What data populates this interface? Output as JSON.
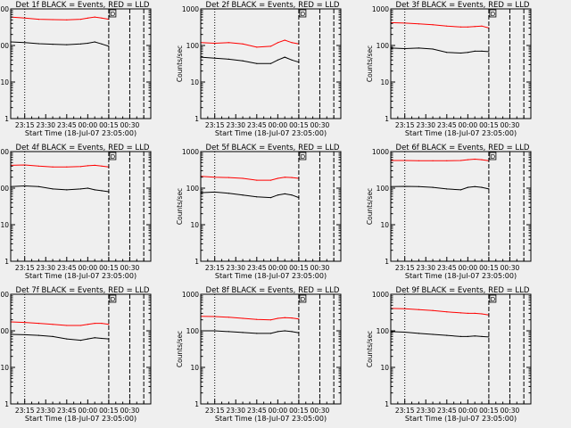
{
  "figure": {
    "background": "#efefef",
    "x_axis_label": "Start Time (18-Jul-07 23:05:00)",
    "y_axis_label": "Counts/sec",
    "y_scale": "log",
    "ylim": [
      1,
      1000
    ],
    "y_tick_labels": [
      "1",
      "10",
      "100",
      "1000"
    ],
    "x_tick_labels": [
      "23:15",
      "23:30",
      "23:45",
      "00:00",
      "00:15",
      "00:30"
    ],
    "x_tick_values_min": [
      10,
      25,
      40,
      55,
      70,
      85
    ],
    "xlim_min": [
      0,
      100
    ],
    "marker_label": "D",
    "reference_lines_min": [
      10,
      70,
      85,
      95
    ],
    "colors": {
      "events": "#000000",
      "lld": "#ff0000",
      "axes": "#000000"
    }
  },
  "chart_data": [
    {
      "type": "line",
      "title": "Det 1f BLACK = Events, RED = LLD",
      "x_min": [
        0,
        10,
        20,
        30,
        40,
        50,
        55,
        60,
        65,
        70
      ],
      "series": [
        {
          "name": "BLACK = Events",
          "values": [
            125,
            120,
            112,
            108,
            105,
            110,
            115,
            125,
            110,
            95
          ]
        },
        {
          "name": "RED = LLD",
          "values": [
            600,
            560,
            520,
            510,
            500,
            520,
            560,
            600,
            560,
            520
          ]
        }
      ]
    },
    {
      "type": "line",
      "title": "Det 2f BLACK = Events, RED = LLD",
      "x_min": [
        0,
        10,
        20,
        30,
        40,
        50,
        55,
        60,
        65,
        70
      ],
      "series": [
        {
          "name": "BLACK = Events",
          "values": [
            48,
            45,
            42,
            38,
            32,
            32,
            40,
            48,
            40,
            35
          ]
        },
        {
          "name": "RED = LLD",
          "values": [
            120,
            115,
            120,
            110,
            90,
            95,
            120,
            140,
            120,
            110
          ]
        }
      ]
    },
    {
      "type": "line",
      "title": "Det 3f BLACK = Events, RED = LLD",
      "x_min": [
        0,
        10,
        20,
        30,
        40,
        50,
        55,
        60,
        65,
        70
      ],
      "series": [
        {
          "name": "BLACK = Events",
          "values": [
            85,
            82,
            85,
            80,
            65,
            62,
            65,
            70,
            70,
            68
          ]
        },
        {
          "name": "RED = LLD",
          "values": [
            420,
            410,
            390,
            370,
            340,
            320,
            320,
            330,
            340,
            300
          ]
        }
      ]
    },
    {
      "type": "line",
      "title": "Det 4f BLACK = Events, RED = LLD",
      "x_min": [
        0,
        10,
        20,
        30,
        40,
        50,
        55,
        60,
        65,
        70
      ],
      "series": [
        {
          "name": "BLACK = Events",
          "values": [
            110,
            115,
            110,
            95,
            90,
            95,
            100,
            90,
            85,
            80
          ]
        },
        {
          "name": "RED = LLD",
          "values": [
            420,
            430,
            400,
            380,
            380,
            390,
            410,
            420,
            400,
            380
          ]
        }
      ]
    },
    {
      "type": "line",
      "title": "Det 5f BLACK = Events, RED = LLD",
      "x_min": [
        0,
        10,
        20,
        30,
        40,
        50,
        55,
        60,
        65,
        70
      ],
      "series": [
        {
          "name": "BLACK = Events",
          "values": [
            75,
            78,
            72,
            65,
            58,
            55,
            65,
            70,
            65,
            55
          ]
        },
        {
          "name": "RED = LLD",
          "values": [
            210,
            200,
            195,
            185,
            165,
            165,
            185,
            200,
            195,
            185
          ]
        }
      ]
    },
    {
      "type": "line",
      "title": "Det 6f BLACK = Events, RED = LLD",
      "x_min": [
        0,
        10,
        20,
        30,
        40,
        50,
        55,
        60,
        65,
        70
      ],
      "series": [
        {
          "name": "BLACK = Events",
          "values": [
            110,
            112,
            110,
            105,
            95,
            90,
            105,
            110,
            105,
            95
          ]
        },
        {
          "name": "RED = LLD",
          "values": [
            570,
            570,
            560,
            560,
            560,
            570,
            600,
            620,
            600,
            560
          ]
        }
      ]
    },
    {
      "type": "line",
      "title": "Det 7f BLACK = Events, RED = LLD",
      "x_min": [
        0,
        10,
        20,
        30,
        40,
        50,
        55,
        60,
        65,
        70
      ],
      "series": [
        {
          "name": "BLACK = Events",
          "values": [
            80,
            78,
            75,
            70,
            60,
            55,
            60,
            65,
            62,
            60
          ]
        },
        {
          "name": "RED = LLD",
          "values": [
            175,
            170,
            160,
            150,
            140,
            140,
            150,
            160,
            160,
            150
          ]
        }
      ]
    },
    {
      "type": "line",
      "title": "Det 8f BLACK = Events, RED = LLD",
      "x_min": [
        0,
        10,
        20,
        30,
        40,
        50,
        55,
        60,
        65,
        70
      ],
      "series": [
        {
          "name": "BLACK = Events",
          "values": [
            100,
            100,
            95,
            90,
            85,
            85,
            95,
            100,
            95,
            88
          ]
        },
        {
          "name": "RED = LLD",
          "values": [
            250,
            245,
            235,
            220,
            205,
            200,
            220,
            230,
            225,
            210
          ]
        }
      ]
    },
    {
      "type": "line",
      "title": "Det 9f BLACK = Events, RED = LLD",
      "x_min": [
        0,
        10,
        20,
        30,
        40,
        50,
        55,
        60,
        65,
        70
      ],
      "series": [
        {
          "name": "BLACK = Events",
          "values": [
            95,
            92,
            85,
            80,
            75,
            70,
            70,
            72,
            70,
            68
          ]
        },
        {
          "name": "RED = LLD",
          "values": [
            410,
            400,
            380,
            360,
            330,
            310,
            300,
            300,
            290,
            270
          ]
        }
      ]
    }
  ]
}
